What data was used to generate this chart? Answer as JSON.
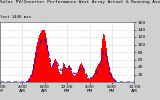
{
  "title": "Solar PV/Inverter Performance West Array Actual & Running Average Power Output",
  "subtitle": "last 1440 min",
  "bg_color": "#d0d0d0",
  "plot_bg": "#ffffff",
  "grid_color": "#aaaaaa",
  "bar_color": "#ff0000",
  "line_color": "#0000ff",
  "bar_values": [
    0,
    0,
    0,
    0,
    0,
    0,
    0,
    0,
    0,
    0,
    0,
    0,
    0,
    0,
    0,
    0,
    0,
    0,
    0,
    0,
    0,
    0,
    0,
    0,
    0,
    1,
    2,
    4,
    7,
    12,
    20,
    32,
    48,
    65,
    80,
    95,
    108,
    118,
    125,
    130,
    135,
    138,
    140,
    138,
    130,
    118,
    100,
    82,
    65,
    50,
    40,
    42,
    50,
    58,
    62,
    55,
    45,
    35,
    28,
    22,
    38,
    52,
    48,
    40,
    35,
    38,
    42,
    45,
    38,
    30,
    25,
    20,
    15,
    18,
    22,
    28,
    35,
    42,
    48,
    50,
    45,
    38,
    30,
    22,
    15,
    10,
    10,
    8,
    10,
    12,
    18,
    25,
    32,
    38,
    42,
    48,
    52,
    55,
    90,
    115,
    128,
    125,
    110,
    90,
    70,
    52,
    38,
    28,
    20,
    14,
    10,
    6,
    3,
    1,
    0,
    0,
    0,
    0,
    0,
    0,
    0,
    0,
    0,
    0,
    0,
    0,
    0,
    0,
    0,
    0,
    0
  ],
  "avg_values": [
    0,
    0,
    0,
    0,
    0,
    0,
    0,
    0,
    0,
    0,
    0,
    0,
    0,
    0,
    0,
    0,
    0,
    0,
    0,
    0,
    0,
    0,
    0,
    0,
    0,
    0,
    1,
    2,
    4,
    7,
    12,
    20,
    30,
    42,
    55,
    68,
    80,
    90,
    98,
    105,
    110,
    113,
    115,
    114,
    110,
    102,
    90,
    78,
    65,
    54,
    46,
    44,
    46,
    50,
    53,
    52,
    48,
    42,
    36,
    30,
    32,
    38,
    40,
    38,
    36,
    37,
    39,
    40,
    38,
    34,
    30,
    26,
    22,
    22,
    24,
    27,
    30,
    34,
    38,
    41,
    40,
    36,
    30,
    24,
    18,
    14,
    12,
    11,
    11,
    12,
    14,
    17,
    21,
    25,
    28,
    32,
    36,
    40,
    55,
    70,
    80,
    82,
    78,
    70,
    58,
    46,
    36,
    26,
    18,
    12,
    8,
    5,
    3,
    1,
    0,
    0,
    0,
    0,
    0,
    0,
    0,
    0,
    0,
    0,
    0,
    0,
    0,
    0,
    0,
    0,
    0
  ],
  "ylim": [
    0,
    160
  ],
  "yticks": [
    20,
    40,
    60,
    80,
    100,
    120,
    140,
    160
  ],
  "xlabel_ticks": [
    "12:00\nAM",
    "4:00\nAM",
    "8:00\nAM",
    "12:00\nPM",
    "4:00\nPM",
    "8:00\nPM",
    "12:00\nAM"
  ],
  "xlabel_pos_frac": [
    0.0,
    0.167,
    0.333,
    0.5,
    0.667,
    0.833,
    1.0
  ]
}
